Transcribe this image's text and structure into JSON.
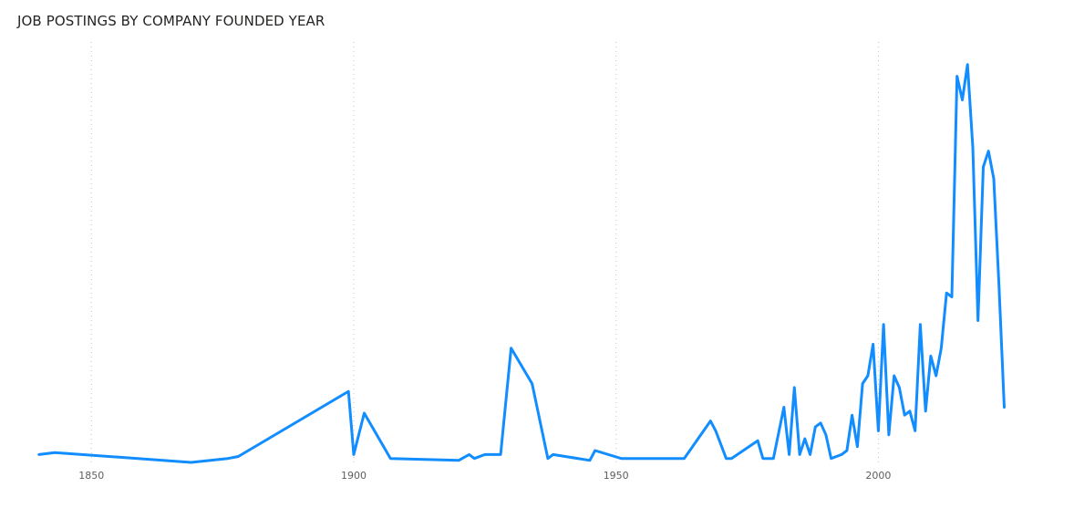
{
  "chart_data": {
    "type": "line",
    "title": "JOB POSTINGS BY COMPANY FOUNDED YEAR",
    "xlabel": "",
    "ylabel": "",
    "x_ticks": [
      "1850",
      "1900",
      "1950",
      "2000"
    ],
    "xlim": [
      1839,
      2026
    ],
    "ylim": [
      0,
      100
    ],
    "grid": {
      "vertical": true,
      "style": "dotted",
      "horizontal": false
    },
    "y_axis_visible": false,
    "legend": "none",
    "line_color": "#118DFF",
    "series": [
      {
        "x": [
          1840,
          1843,
          1869,
          1876,
          1878,
          1899,
          1900,
          1902,
          1907,
          1920,
          1922,
          1923,
          1925,
          1927,
          1928,
          1930,
          1934,
          1937,
          1938,
          1945,
          1946,
          1951,
          1957,
          1962,
          1963,
          1968,
          1969,
          1971,
          1972,
          1977,
          1978,
          1980,
          1982,
          1983,
          1984,
          1985,
          1986,
          1987,
          1988,
          1989,
          1990,
          1991,
          1993,
          1994,
          1995,
          1996,
          1997,
          1998,
          1999,
          2000,
          2001,
          2002,
          2003,
          2004,
          2005,
          2006,
          2007,
          2008,
          2009,
          2010,
          2011,
          2012,
          2013,
          2014,
          2015,
          2016,
          2017,
          2018,
          2019,
          2020,
          2021,
          2022,
          2023,
          2024
        ],
        "y": [
          2,
          2.5,
          0,
          1,
          1.5,
          18,
          2,
          12.5,
          1,
          0.5,
          2,
          1,
          2,
          2,
          2,
          29,
          20,
          1,
          2,
          0.5,
          3,
          1,
          1,
          1,
          1,
          10.5,
          8,
          1,
          1,
          5.5,
          1,
          1,
          14,
          2,
          19,
          2,
          6,
          2,
          9,
          10,
          7,
          1,
          2,
          3,
          12,
          4,
          20,
          22,
          30,
          8,
          35,
          7,
          22,
          19,
          12,
          13,
          8,
          35,
          13,
          27,
          22,
          29,
          43,
          42,
          98,
          92,
          101,
          80,
          36,
          75,
          79,
          72,
          45,
          14
        ]
      }
    ]
  }
}
